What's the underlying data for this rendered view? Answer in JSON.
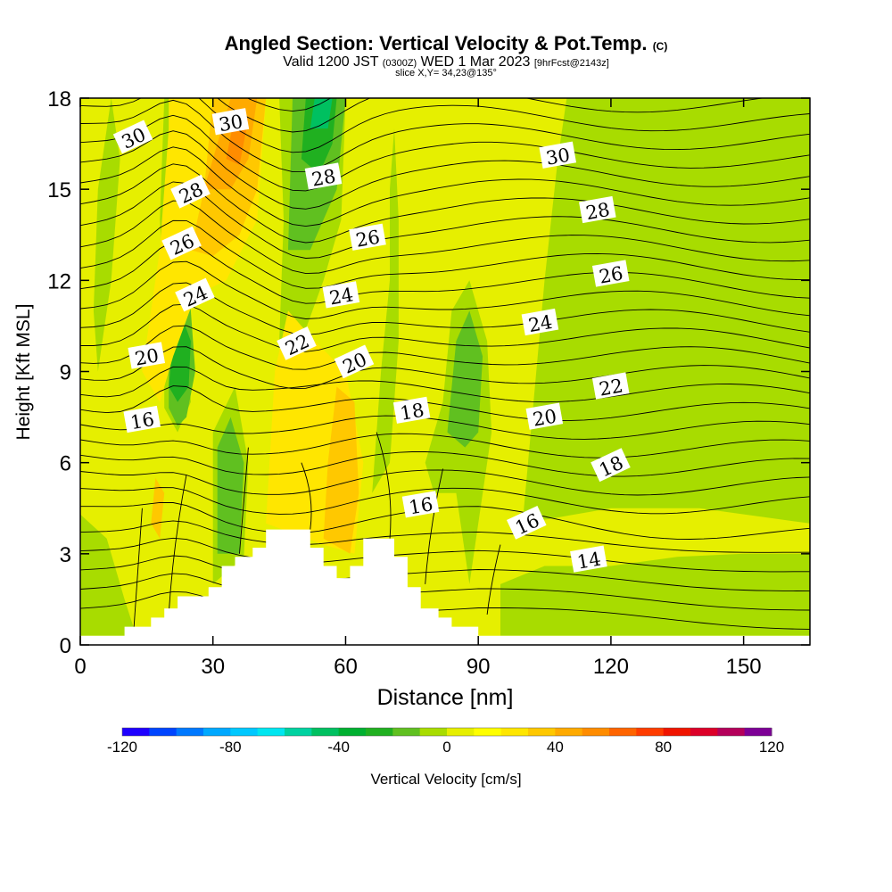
{
  "title": {
    "main": "Angled Section: Vertical Velocity & Pot.Temp.",
    "main_suffix": "(C)",
    "valid_prefix": "Valid 1200 JST",
    "valid_zulu": "(0300Z)",
    "valid_date": "WED 1 Mar 2023",
    "valid_fcst": "[9hrFcst@2143z]",
    "slice": "slice X,Y= 34,23@135°"
  },
  "chart_data": {
    "type": "heatmap",
    "title": "Angled Section: Vertical Velocity & Pot.Temp.",
    "xlabel": "Distance [nm]",
    "ylabel": "Height [Kft MSL]",
    "xlim": [
      0,
      165
    ],
    "ylim": [
      0,
      18
    ],
    "xticks": [
      0,
      30,
      60,
      90,
      120,
      150
    ],
    "yticks": [
      0,
      3,
      6,
      9,
      12,
      15,
      18
    ],
    "colorbar": {
      "label": "Vertical Velocity [cm/s]",
      "range": [
        -120,
        120
      ],
      "step": 10,
      "tick_labels": [
        "-120",
        "-80",
        "-40",
        "0",
        "40",
        "80",
        "120"
      ],
      "colors": [
        "#1e00ff",
        "#0044ff",
        "#0078ff",
        "#00a8ff",
        "#00c8ff",
        "#00e6f0",
        "#00d2a0",
        "#00c060",
        "#00b030",
        "#20b020",
        "#60c020",
        "#a8dc00",
        "#e6ef00",
        "#ffff00",
        "#ffe600",
        "#ffc800",
        "#ffaa00",
        "#ff8c00",
        "#ff6400",
        "#ff3c00",
        "#f01400",
        "#dc0028",
        "#b4005a",
        "#7d0096"
      ]
    },
    "terrain": [
      [
        0,
        0.3
      ],
      [
        10,
        0.3
      ],
      [
        10,
        0.6
      ],
      [
        16,
        0.6
      ],
      [
        16,
        0.9
      ],
      [
        19,
        0.9
      ],
      [
        19,
        1.2
      ],
      [
        22,
        1.2
      ],
      [
        22,
        1.6
      ],
      [
        29,
        1.6
      ],
      [
        29,
        1.9
      ],
      [
        32,
        1.9
      ],
      [
        32,
        2.6
      ],
      [
        35,
        2.6
      ],
      [
        35,
        2.9
      ],
      [
        39,
        2.9
      ],
      [
        39,
        3.2
      ],
      [
        42,
        3.2
      ],
      [
        42,
        3.8
      ],
      [
        52,
        3.8
      ],
      [
        52,
        3.2
      ],
      [
        55,
        3.2
      ],
      [
        55,
        2.6
      ],
      [
        58,
        2.6
      ],
      [
        58,
        2.2
      ],
      [
        61,
        2.2
      ],
      [
        61,
        2.6
      ],
      [
        64,
        2.6
      ],
      [
        64,
        3.5
      ],
      [
        71,
        3.5
      ],
      [
        71,
        2.9
      ],
      [
        74,
        2.9
      ],
      [
        74,
        1.9
      ],
      [
        77,
        1.9
      ],
      [
        77,
        1.2
      ],
      [
        81,
        1.2
      ],
      [
        81,
        0.9
      ],
      [
        84,
        0.9
      ],
      [
        84,
        0.6
      ],
      [
        90,
        0.6
      ],
      [
        90,
        0.3
      ],
      [
        165,
        0.3
      ]
    ],
    "vertical_velocity_regions": [
      {
        "color": "#a8dc00",
        "points": [
          [
            0,
            0.3
          ],
          [
            0,
            4.3
          ],
          [
            6,
            3.5
          ],
          [
            10,
            1.5
          ],
          [
            12,
            0.6
          ],
          [
            10,
            0.3
          ]
        ]
      },
      {
        "color": "#a8dc00",
        "points": [
          [
            4,
            9
          ],
          [
            7,
            12
          ],
          [
            9,
            16
          ],
          [
            7,
            18
          ],
          [
            4,
            15
          ],
          [
            3,
            11
          ]
        ]
      },
      {
        "color": "#a8dc00",
        "points": [
          [
            19,
            7.8
          ],
          [
            19,
            11.5
          ],
          [
            18,
            14
          ],
          [
            19,
            18
          ],
          [
            22,
            18
          ],
          [
            24,
            14
          ],
          [
            24,
            11
          ],
          [
            25,
            8
          ],
          [
            22,
            7
          ]
        ]
      },
      {
        "color": "#a8dc00",
        "points": [
          [
            30,
            2
          ],
          [
            30,
            7
          ],
          [
            35,
            8.5
          ],
          [
            38,
            6
          ],
          [
            37,
            2.9
          ]
        ]
      },
      {
        "color": "#a8dc00",
        "points": [
          [
            45,
            10
          ],
          [
            46,
            14
          ],
          [
            45,
            18
          ],
          [
            60,
            18
          ],
          [
            59,
            14
          ],
          [
            55,
            12
          ],
          [
            50,
            10
          ]
        ]
      },
      {
        "color": "#a8dc00",
        "points": [
          [
            66,
            5
          ],
          [
            68,
            9
          ],
          [
            70,
            12
          ],
          [
            70,
            15
          ],
          [
            71,
            17
          ],
          [
            72,
            14
          ],
          [
            72,
            10
          ],
          [
            70,
            6
          ]
        ]
      },
      {
        "color": "#a8dc00",
        "points": [
          [
            78,
            6
          ],
          [
            82,
            8
          ],
          [
            84,
            11
          ],
          [
            88,
            12
          ],
          [
            92,
            10
          ],
          [
            93,
            7
          ],
          [
            90,
            4
          ],
          [
            88,
            2
          ],
          [
            85,
            5
          ],
          [
            80,
            5
          ]
        ]
      },
      {
        "color": "#a8dc00",
        "points": [
          [
            95,
            0.3
          ],
          [
            95,
            2
          ],
          [
            105,
            2.6
          ],
          [
            120,
            2.6
          ],
          [
            135,
            2.9
          ],
          [
            150,
            3
          ],
          [
            165,
            3
          ],
          [
            165,
            0.3
          ]
        ]
      },
      {
        "color": "#a8dc00",
        "points": [
          [
            100,
            4
          ],
          [
            105,
            12
          ],
          [
            108,
            16
          ],
          [
            110,
            18
          ],
          [
            165,
            18
          ],
          [
            165,
            4
          ],
          [
            140,
            4.5
          ],
          [
            120,
            4.5
          ]
        ]
      },
      {
        "color": "#60c020",
        "points": [
          [
            20,
            7.8
          ],
          [
            20,
            10
          ],
          [
            21,
            12
          ],
          [
            23,
            12.5
          ],
          [
            25,
            11
          ],
          [
            26,
            9
          ],
          [
            24,
            7.5
          ],
          [
            22,
            7.2
          ]
        ]
      },
      {
        "color": "#60c020",
        "points": [
          [
            31,
            3
          ],
          [
            31,
            6.5
          ],
          [
            34,
            7.5
          ],
          [
            37,
            6
          ],
          [
            36,
            3
          ]
        ]
      },
      {
        "color": "#60c020",
        "points": [
          [
            47,
            13
          ],
          [
            48,
            18
          ],
          [
            60,
            18
          ],
          [
            58,
            15
          ],
          [
            52,
            13
          ]
        ]
      },
      {
        "color": "#60c020",
        "points": [
          [
            83,
            7
          ],
          [
            85,
            10
          ],
          [
            88,
            11
          ],
          [
            91,
            9.5
          ],
          [
            90,
            7
          ],
          [
            87,
            6.5
          ]
        ]
      },
      {
        "color": "#20b020",
        "points": [
          [
            20,
            8.5
          ],
          [
            21,
            10
          ],
          [
            23,
            10.8
          ],
          [
            25,
            10
          ],
          [
            24.5,
            8.5
          ],
          [
            22,
            8
          ]
        ]
      },
      {
        "color": "#20b020",
        "points": [
          [
            50,
            16
          ],
          [
            51,
            18
          ],
          [
            58,
            18
          ],
          [
            57,
            16.5
          ],
          [
            54,
            15.5
          ]
        ]
      },
      {
        "color": "#00c060",
        "points": [
          [
            52,
            17
          ],
          [
            53,
            18
          ],
          [
            57,
            18
          ],
          [
            56,
            17
          ]
        ]
      },
      {
        "color": "#ffe600",
        "points": [
          [
            14,
            9
          ],
          [
            16,
            11
          ],
          [
            18,
            13
          ],
          [
            20,
            17
          ],
          [
            20,
            18
          ],
          [
            42,
            18
          ],
          [
            40,
            14
          ],
          [
            33,
            12
          ],
          [
            26,
            11.5
          ],
          [
            21,
            9.5
          ],
          [
            18,
            8
          ]
        ]
      },
      {
        "color": "#ffe600",
        "points": [
          [
            42,
            4
          ],
          [
            44,
            9
          ],
          [
            47,
            11
          ],
          [
            53,
            10
          ],
          [
            60,
            9
          ],
          [
            64,
            6
          ],
          [
            62,
            3
          ],
          [
            55,
            3.3
          ]
        ]
      },
      {
        "color": "#ffc800",
        "points": [
          [
            25,
            13
          ],
          [
            28,
            15
          ],
          [
            30,
            18
          ],
          [
            42,
            18
          ],
          [
            40,
            15
          ],
          [
            36,
            13.5
          ],
          [
            30,
            12.8
          ]
        ]
      },
      {
        "color": "#ffc800",
        "points": [
          [
            55,
            3.5
          ],
          [
            56,
            6
          ],
          [
            58,
            8.5
          ],
          [
            62,
            8
          ],
          [
            63,
            5
          ],
          [
            61,
            3
          ]
        ]
      },
      {
        "color": "#ffc800",
        "points": [
          [
            16,
            4
          ],
          [
            17,
            5.5
          ],
          [
            19,
            5
          ],
          [
            18,
            3.5
          ]
        ]
      },
      {
        "color": "#ffaa00",
        "points": [
          [
            28,
            15
          ],
          [
            31,
            16.5
          ],
          [
            34,
            18
          ],
          [
            40,
            18
          ],
          [
            38,
            16
          ],
          [
            34,
            15
          ]
        ]
      },
      {
        "color": "#ff8c00",
        "points": [
          [
            33,
            16
          ],
          [
            35,
            17.5
          ],
          [
            38,
            17.3
          ],
          [
            36,
            15.8
          ]
        ]
      }
    ],
    "pot_temp_contour_labels": [
      {
        "text": "30",
        "x": 12,
        "y": 16.7
      },
      {
        "text": "30",
        "x": 34,
        "y": 17.2
      },
      {
        "text": "30",
        "x": 108,
        "y": 16.1
      },
      {
        "text": "28",
        "x": 25,
        "y": 14.9
      },
      {
        "text": "28",
        "x": 55,
        "y": 15.4
      },
      {
        "text": "28",
        "x": 117,
        "y": 14.3
      },
      {
        "text": "26",
        "x": 23,
        "y": 13.2
      },
      {
        "text": "26",
        "x": 65,
        "y": 13.4
      },
      {
        "text": "26",
        "x": 120,
        "y": 12.2
      },
      {
        "text": "24",
        "x": 26,
        "y": 11.5
      },
      {
        "text": "24",
        "x": 59,
        "y": 11.5
      },
      {
        "text": "24",
        "x": 104,
        "y": 10.6
      },
      {
        "text": "22",
        "x": 49,
        "y": 9.9
      },
      {
        "text": "22",
        "x": 120,
        "y": 8.5
      },
      {
        "text": "20",
        "x": 15,
        "y": 9.5
      },
      {
        "text": "20",
        "x": 62,
        "y": 9.3
      },
      {
        "text": "20",
        "x": 105,
        "y": 7.5
      },
      {
        "text": "18",
        "x": 75,
        "y": 7.7
      },
      {
        "text": "18",
        "x": 120,
        "y": 5.9
      },
      {
        "text": "16",
        "x": 14,
        "y": 7.4
      },
      {
        "text": "16",
        "x": 77,
        "y": 4.6
      },
      {
        "text": "16",
        "x": 101,
        "y": 4
      },
      {
        "text": "14",
        "x": 115,
        "y": 2.8
      }
    ]
  }
}
